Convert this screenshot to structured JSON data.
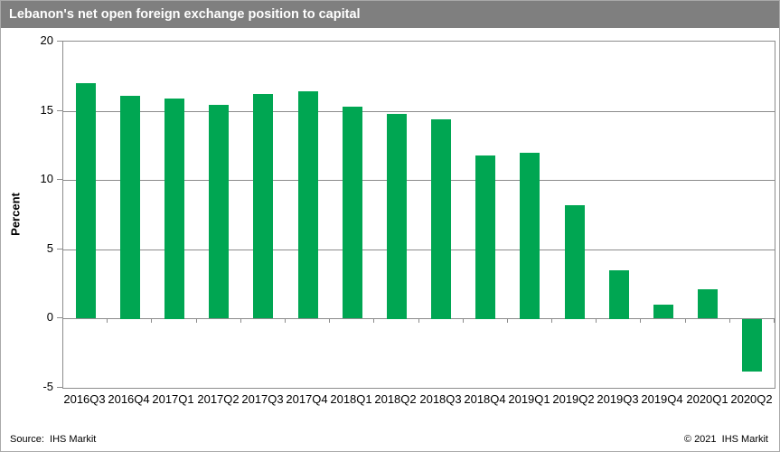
{
  "title": "Lebanon's net open foreign exchange position to capital",
  "footer": {
    "source": "Source:  IHS Markit",
    "copyright": "© 2021  IHS Markit"
  },
  "colors": {
    "bar": "#00a652",
    "title_bar": "#7f7f7f",
    "title_text": "#ffffff",
    "grid": "#8c8c8c",
    "text": "#000000"
  },
  "chart_data": {
    "type": "bar",
    "title": "Lebanon's net open foreign exchange position to capital",
    "ylabel": "Percent",
    "xlabel": "",
    "ylim": [
      -5,
      20
    ],
    "yticks": [
      20,
      15,
      10,
      5,
      0,
      -5
    ],
    "grid": true,
    "legend": false,
    "categories": [
      "2016Q3",
      "2016Q4",
      "2017Q1",
      "2017Q2",
      "2017Q3",
      "2017Q4",
      "2018Q1",
      "2018Q2",
      "2018Q3",
      "2018Q4",
      "2019Q1",
      "2019Q2",
      "2019Q3",
      "2019Q4",
      "2020Q1",
      "2020Q2"
    ],
    "values": [
      17.0,
      16.1,
      15.9,
      15.4,
      16.2,
      16.4,
      15.3,
      14.8,
      14.4,
      11.8,
      12.0,
      8.2,
      3.5,
      1.0,
      2.1,
      -3.8
    ]
  }
}
